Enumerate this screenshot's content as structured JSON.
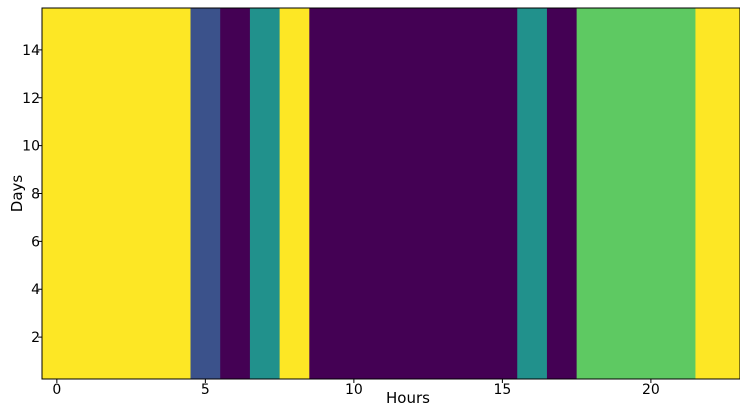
{
  "chart_data": {
    "type": "heatmap",
    "title": "",
    "xlabel": "Hours",
    "ylabel": "Days",
    "xlim": [
      -0.5,
      23.0
    ],
    "ylim": [
      0.25,
      15.75
    ],
    "x_ticks": [
      0,
      5,
      10,
      15,
      20
    ],
    "y_ticks": [
      2,
      4,
      6,
      8,
      10,
      12,
      14
    ],
    "grid": false,
    "cells": [
      {
        "x_start": -0.5,
        "x_end": 4.5,
        "color": "#fde725"
      },
      {
        "x_start": 4.5,
        "x_end": 5.5,
        "color": "#3b528b"
      },
      {
        "x_start": 5.5,
        "x_end": 6.5,
        "color": "#440154"
      },
      {
        "x_start": 6.5,
        "x_end": 7.5,
        "color": "#21918c"
      },
      {
        "x_start": 7.5,
        "x_end": 8.5,
        "color": "#fde725"
      },
      {
        "x_start": 8.5,
        "x_end": 15.5,
        "color": "#440154"
      },
      {
        "x_start": 15.5,
        "x_end": 16.5,
        "color": "#21918c"
      },
      {
        "x_start": 16.5,
        "x_end": 17.5,
        "color": "#440154"
      },
      {
        "x_start": 17.5,
        "x_end": 21.5,
        "color": "#5ec962"
      },
      {
        "x_start": 21.5,
        "x_end": 23.0,
        "color": "#fde725"
      }
    ]
  }
}
